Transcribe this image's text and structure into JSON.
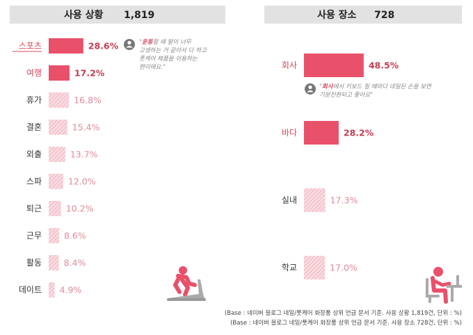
{
  "chart_data": [
    {
      "type": "bar",
      "orientation": "horizontal",
      "title": "사용 상황",
      "total": "1,819",
      "categories": [
        "스포츠",
        "여행",
        "휴가",
        "결혼",
        "외출",
        "스파",
        "퇴근",
        "근무",
        "활동",
        "데이트"
      ],
      "values": [
        28.6,
        17.2,
        16.8,
        15.4,
        13.7,
        12.0,
        10.2,
        8.6,
        8.4,
        4.9
      ],
      "value_labels": [
        "28.6%",
        "17.2%",
        "16.8%",
        "15.4%",
        "13.7%",
        "12.0%",
        "10.2%",
        "8.6%",
        "8.4%",
        "4.9%"
      ],
      "highlighted": [
        0,
        1
      ],
      "annotation": {
        "category": "스포츠",
        "highlight": "운동",
        "lines": [
          "할 때 발이 너무",
          "고생하는 거 같아서 다 하고",
          "풋케어 제품을 이용하는",
          "편이에요.\""
        ]
      }
    },
    {
      "type": "bar",
      "orientation": "horizontal",
      "title": "사용 장소",
      "total": "728",
      "categories": [
        "회사",
        "바다",
        "실내",
        "학교"
      ],
      "values": [
        48.5,
        28.2,
        17.3,
        17.0
      ],
      "value_labels": [
        "48.5%",
        "28.2%",
        "17.3%",
        "17.0%"
      ],
      "highlighted": [
        0,
        1
      ],
      "annotation": {
        "category": "회사",
        "highlight": "회사",
        "lines": [
          "에서 키보드 칠 때마다 네일된 손을 보면",
          "기분전환되고 좋아요\""
        ]
      }
    }
  ],
  "colors": {
    "highlight": "#e9506a",
    "muted": "#f4c6ce",
    "header_bg": "#e2e2e2",
    "highlight_text": "#c43d52",
    "muted_text": "#e08a98"
  },
  "icons": [
    "person-running-treadmill-icon",
    "person-sitting-desk-icon",
    "user-avatar-icon"
  ],
  "source_notes": [
    "(Base : 네이버 블로그 네일/풋케어 화장품 상위 언급 문서 기준. 사용 상황 1,819건, 단위 : %)",
    "(Base : 네이버 블로그 네일/풋케어 화장품 상위 언급 문서 기준. 사용 장소 728건, 단위 : %)"
  ]
}
